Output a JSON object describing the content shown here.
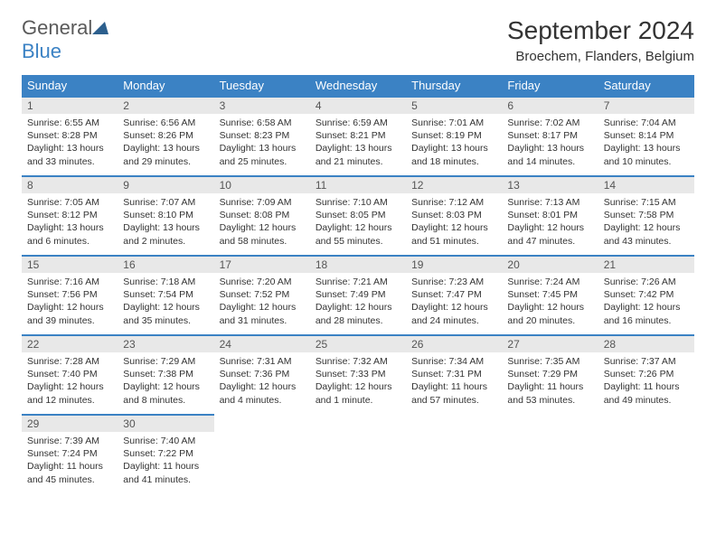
{
  "logo": {
    "text1": "General",
    "text2": "Blue"
  },
  "title": "September 2024",
  "location": "Broechem, Flanders, Belgium",
  "colors": {
    "header_bg": "#3b82c4",
    "header_text": "#ffffff",
    "day_row_bg": "#e8e8e8",
    "day_row_border": "#3b82c4",
    "body_text": "#333333",
    "logo_gray": "#5a5a5a",
    "logo_blue": "#3b82c4"
  },
  "typography": {
    "title_fontsize": 28,
    "location_fontsize": 15,
    "header_fontsize": 13,
    "daynum_fontsize": 12,
    "content_fontsize": 10.5
  },
  "weekdays": [
    "Sunday",
    "Monday",
    "Tuesday",
    "Wednesday",
    "Thursday",
    "Friday",
    "Saturday"
  ],
  "days": [
    {
      "num": 1,
      "sunrise": "6:55 AM",
      "sunset": "8:28 PM",
      "daylight": "13 hours and 33 minutes."
    },
    {
      "num": 2,
      "sunrise": "6:56 AM",
      "sunset": "8:26 PM",
      "daylight": "13 hours and 29 minutes."
    },
    {
      "num": 3,
      "sunrise": "6:58 AM",
      "sunset": "8:23 PM",
      "daylight": "13 hours and 25 minutes."
    },
    {
      "num": 4,
      "sunrise": "6:59 AM",
      "sunset": "8:21 PM",
      "daylight": "13 hours and 21 minutes."
    },
    {
      "num": 5,
      "sunrise": "7:01 AM",
      "sunset": "8:19 PM",
      "daylight": "13 hours and 18 minutes."
    },
    {
      "num": 6,
      "sunrise": "7:02 AM",
      "sunset": "8:17 PM",
      "daylight": "13 hours and 14 minutes."
    },
    {
      "num": 7,
      "sunrise": "7:04 AM",
      "sunset": "8:14 PM",
      "daylight": "13 hours and 10 minutes."
    },
    {
      "num": 8,
      "sunrise": "7:05 AM",
      "sunset": "8:12 PM",
      "daylight": "13 hours and 6 minutes."
    },
    {
      "num": 9,
      "sunrise": "7:07 AM",
      "sunset": "8:10 PM",
      "daylight": "13 hours and 2 minutes."
    },
    {
      "num": 10,
      "sunrise": "7:09 AM",
      "sunset": "8:08 PM",
      "daylight": "12 hours and 58 minutes."
    },
    {
      "num": 11,
      "sunrise": "7:10 AM",
      "sunset": "8:05 PM",
      "daylight": "12 hours and 55 minutes."
    },
    {
      "num": 12,
      "sunrise": "7:12 AM",
      "sunset": "8:03 PM",
      "daylight": "12 hours and 51 minutes."
    },
    {
      "num": 13,
      "sunrise": "7:13 AM",
      "sunset": "8:01 PM",
      "daylight": "12 hours and 47 minutes."
    },
    {
      "num": 14,
      "sunrise": "7:15 AM",
      "sunset": "7:58 PM",
      "daylight": "12 hours and 43 minutes."
    },
    {
      "num": 15,
      "sunrise": "7:16 AM",
      "sunset": "7:56 PM",
      "daylight": "12 hours and 39 minutes."
    },
    {
      "num": 16,
      "sunrise": "7:18 AM",
      "sunset": "7:54 PM",
      "daylight": "12 hours and 35 minutes."
    },
    {
      "num": 17,
      "sunrise": "7:20 AM",
      "sunset": "7:52 PM",
      "daylight": "12 hours and 31 minutes."
    },
    {
      "num": 18,
      "sunrise": "7:21 AM",
      "sunset": "7:49 PM",
      "daylight": "12 hours and 28 minutes."
    },
    {
      "num": 19,
      "sunrise": "7:23 AM",
      "sunset": "7:47 PM",
      "daylight": "12 hours and 24 minutes."
    },
    {
      "num": 20,
      "sunrise": "7:24 AM",
      "sunset": "7:45 PM",
      "daylight": "12 hours and 20 minutes."
    },
    {
      "num": 21,
      "sunrise": "7:26 AM",
      "sunset": "7:42 PM",
      "daylight": "12 hours and 16 minutes."
    },
    {
      "num": 22,
      "sunrise": "7:28 AM",
      "sunset": "7:40 PM",
      "daylight": "12 hours and 12 minutes."
    },
    {
      "num": 23,
      "sunrise": "7:29 AM",
      "sunset": "7:38 PM",
      "daylight": "12 hours and 8 minutes."
    },
    {
      "num": 24,
      "sunrise": "7:31 AM",
      "sunset": "7:36 PM",
      "daylight": "12 hours and 4 minutes."
    },
    {
      "num": 25,
      "sunrise": "7:32 AM",
      "sunset": "7:33 PM",
      "daylight": "12 hours and 1 minute."
    },
    {
      "num": 26,
      "sunrise": "7:34 AM",
      "sunset": "7:31 PM",
      "daylight": "11 hours and 57 minutes."
    },
    {
      "num": 27,
      "sunrise": "7:35 AM",
      "sunset": "7:29 PM",
      "daylight": "11 hours and 53 minutes."
    },
    {
      "num": 28,
      "sunrise": "7:37 AM",
      "sunset": "7:26 PM",
      "daylight": "11 hours and 49 minutes."
    },
    {
      "num": 29,
      "sunrise": "7:39 AM",
      "sunset": "7:24 PM",
      "daylight": "11 hours and 45 minutes."
    },
    {
      "num": 30,
      "sunrise": "7:40 AM",
      "sunset": "7:22 PM",
      "daylight": "11 hours and 41 minutes."
    }
  ],
  "labels": {
    "sunrise": "Sunrise:",
    "sunset": "Sunset:",
    "daylight": "Daylight:"
  },
  "layout": {
    "first_day_column": 0,
    "rows": 5,
    "cols": 7
  }
}
